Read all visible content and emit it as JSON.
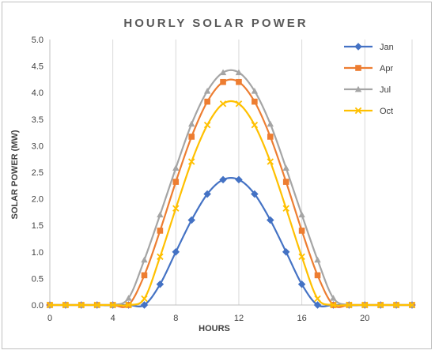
{
  "chart_data": {
    "type": "line",
    "title": "HOURLY SOLAR POWER",
    "xlabel": "HOURS",
    "ylabel": "SOLAR POWER (MW)",
    "xlim": [
      0,
      23
    ],
    "ylim": [
      0,
      5.0
    ],
    "x_ticks": [
      "0",
      "4",
      "8",
      "12",
      "16",
      "20"
    ],
    "y_ticks": [
      "0.0",
      "0.5",
      "1.0",
      "1.5",
      "2.0",
      "2.5",
      "3.0",
      "3.5",
      "4.0",
      "4.5",
      "5.0"
    ],
    "grid": "vertical",
    "legend_position": "right",
    "x": [
      0,
      1,
      2,
      3,
      4,
      5,
      6,
      7,
      8,
      9,
      10,
      11,
      12,
      13,
      14,
      15,
      16,
      17,
      18,
      19,
      20,
      21,
      22,
      23
    ],
    "series": [
      {
        "name": "Jan",
        "color": "#4472c4",
        "marker": "diamond",
        "values": [
          0,
          0,
          0,
          0,
          0,
          0,
          0,
          0.39,
          1.0,
          1.6,
          2.09,
          2.36,
          2.36,
          2.09,
          1.6,
          1.0,
          0.39,
          0,
          0,
          0,
          0,
          0,
          0,
          0
        ]
      },
      {
        "name": "Apr",
        "color": "#ed7d31",
        "marker": "square",
        "values": [
          0,
          0,
          0,
          0,
          0,
          0,
          0.56,
          1.4,
          2.32,
          3.17,
          3.83,
          4.2,
          4.2,
          3.83,
          3.17,
          2.32,
          1.4,
          0.56,
          0,
          0,
          0,
          0,
          0,
          0
        ]
      },
      {
        "name": "Jul",
        "color": "#a5a5a5",
        "marker": "triangle",
        "values": [
          0,
          0,
          0,
          0,
          0,
          0.13,
          0.85,
          1.7,
          2.58,
          3.41,
          4.03,
          4.38,
          4.38,
          4.03,
          3.41,
          2.58,
          1.7,
          0.85,
          0.13,
          0,
          0,
          0,
          0,
          0
        ]
      },
      {
        "name": "Oct",
        "color": "#ffc000",
        "marker": "x",
        "values": [
          0,
          0,
          0,
          0,
          0,
          0,
          0.12,
          0.91,
          1.82,
          2.7,
          3.39,
          3.79,
          3.79,
          3.39,
          2.7,
          1.82,
          0.91,
          0.12,
          0,
          0,
          0,
          0,
          0,
          0
        ]
      }
    ]
  }
}
